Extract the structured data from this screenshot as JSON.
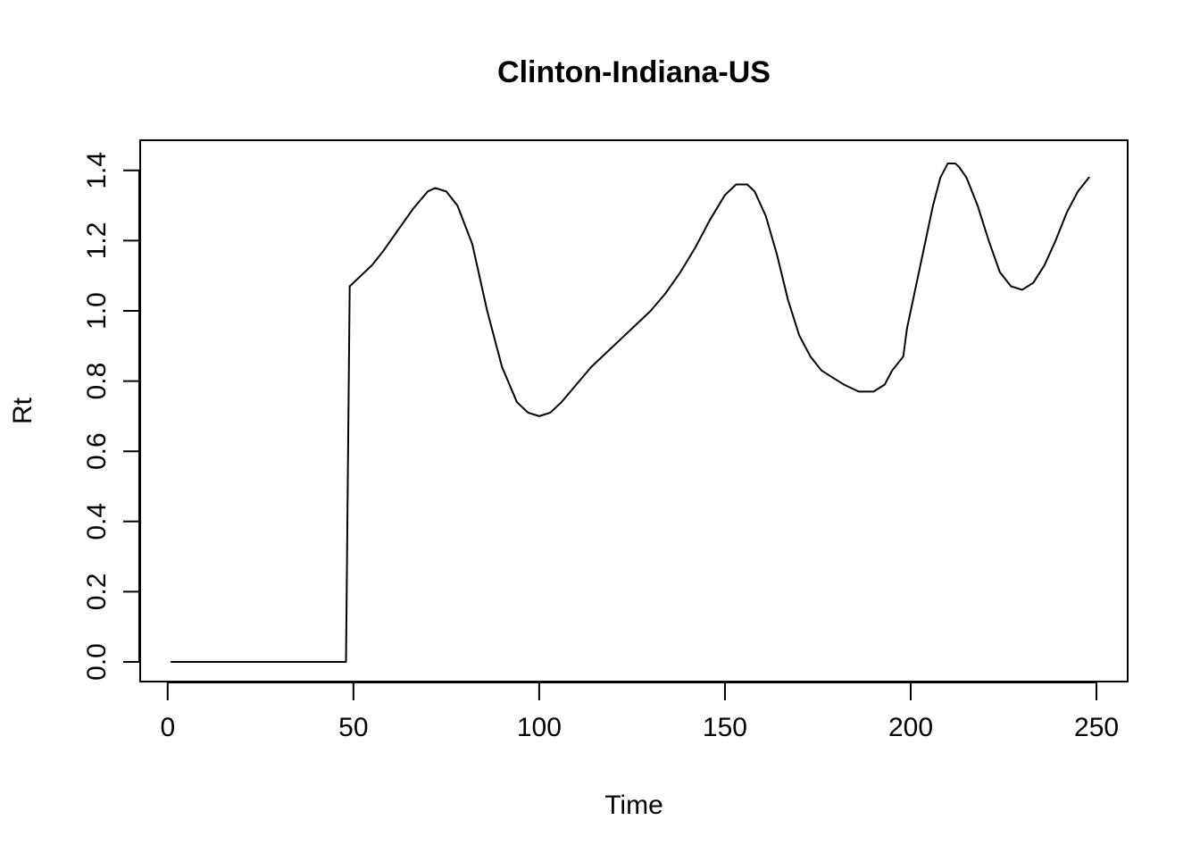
{
  "chart_data": {
    "type": "line",
    "title": "Clinton-Indiana-US",
    "xlabel": "Time",
    "ylabel": "Rt",
    "xlim": [
      -7.4,
      258.4
    ],
    "ylim": [
      -0.056,
      1.486
    ],
    "xticks": [
      0,
      50,
      100,
      150,
      200,
      250
    ],
    "yticks": [
      0.0,
      0.2,
      0.4,
      0.6,
      0.8,
      1.0,
      1.2,
      1.4
    ],
    "xtick_labels": [
      "0",
      "50",
      "100",
      "150",
      "200",
      "250"
    ],
    "ytick_labels": [
      "0.0",
      "0.2",
      "0.4",
      "0.6",
      "0.8",
      "1.0",
      "1.2",
      "1.4"
    ],
    "grid": false,
    "legend": "none",
    "line_color": "#000000",
    "series": [
      {
        "x": [
          1,
          10,
          20,
          30,
          40,
          46,
          47,
          48,
          49,
          52,
          55,
          58,
          62,
          66,
          70,
          72,
          75,
          78,
          82,
          86,
          90,
          94,
          97,
          100,
          103,
          106,
          110,
          114,
          118,
          122,
          126,
          130,
          134,
          138,
          142,
          146,
          150,
          153,
          156,
          158,
          161,
          164,
          167,
          170,
          173,
          176,
          179,
          182,
          186,
          190,
          193,
          195,
          198,
          199,
          200,
          202,
          204,
          206,
          208,
          210,
          212,
          213,
          215,
          218,
          221,
          224,
          227,
          230,
          233,
          236,
          239,
          242,
          245,
          248
        ],
        "y": [
          0,
          0,
          0,
          0,
          0,
          0,
          0,
          0,
          1.07,
          1.1,
          1.13,
          1.17,
          1.23,
          1.29,
          1.34,
          1.35,
          1.34,
          1.3,
          1.19,
          1.0,
          0.84,
          0.74,
          0.71,
          0.7,
          0.71,
          0.74,
          0.79,
          0.84,
          0.88,
          0.92,
          0.96,
          1.0,
          1.05,
          1.11,
          1.18,
          1.26,
          1.33,
          1.36,
          1.36,
          1.34,
          1.27,
          1.16,
          1.03,
          0.93,
          0.87,
          0.83,
          0.81,
          0.79,
          0.77,
          0.77,
          0.79,
          0.83,
          0.87,
          0.95,
          1.0,
          1.1,
          1.2,
          1.3,
          1.38,
          1.42,
          1.42,
          1.41,
          1.38,
          1.3,
          1.2,
          1.11,
          1.07,
          1.06,
          1.08,
          1.13,
          1.2,
          1.28,
          1.34,
          1.38
        ]
      }
    ]
  }
}
